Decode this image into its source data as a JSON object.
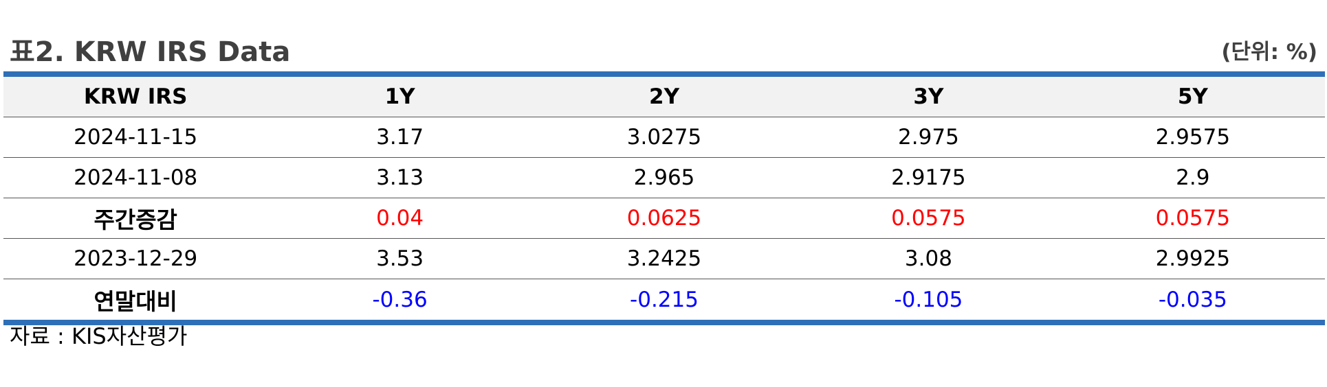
{
  "title": "표2. KRW IRS Data",
  "unit": "(단위: %)",
  "table": {
    "headers": [
      "KRW IRS",
      "1Y",
      "2Y",
      "3Y",
      "5Y"
    ],
    "rows": [
      {
        "label": "2024-11-15",
        "values": [
          "3.17",
          "3.0275",
          "2.975",
          "2.9575"
        ]
      },
      {
        "label": "2024-11-08",
        "values": [
          "3.13",
          "2.965",
          "2.9175",
          "2.9"
        ]
      },
      {
        "label": "주간증감",
        "values": [
          "0.04",
          "0.0625",
          "0.0575",
          "0.0575"
        ]
      },
      {
        "label": "2023-12-29",
        "values": [
          "3.53",
          "3.2425",
          "3.08",
          "2.9925"
        ]
      },
      {
        "label": "연말대비",
        "values": [
          "-0.36",
          "-0.215",
          "-0.105",
          "-0.035"
        ]
      }
    ]
  },
  "source": "자료 : KIS자산평가",
  "colors": {
    "title": "#404040",
    "rule": "#2e6fb7",
    "header_bg": "#f2f2f2",
    "positive": "#ff0000",
    "negative": "#0000ff"
  }
}
